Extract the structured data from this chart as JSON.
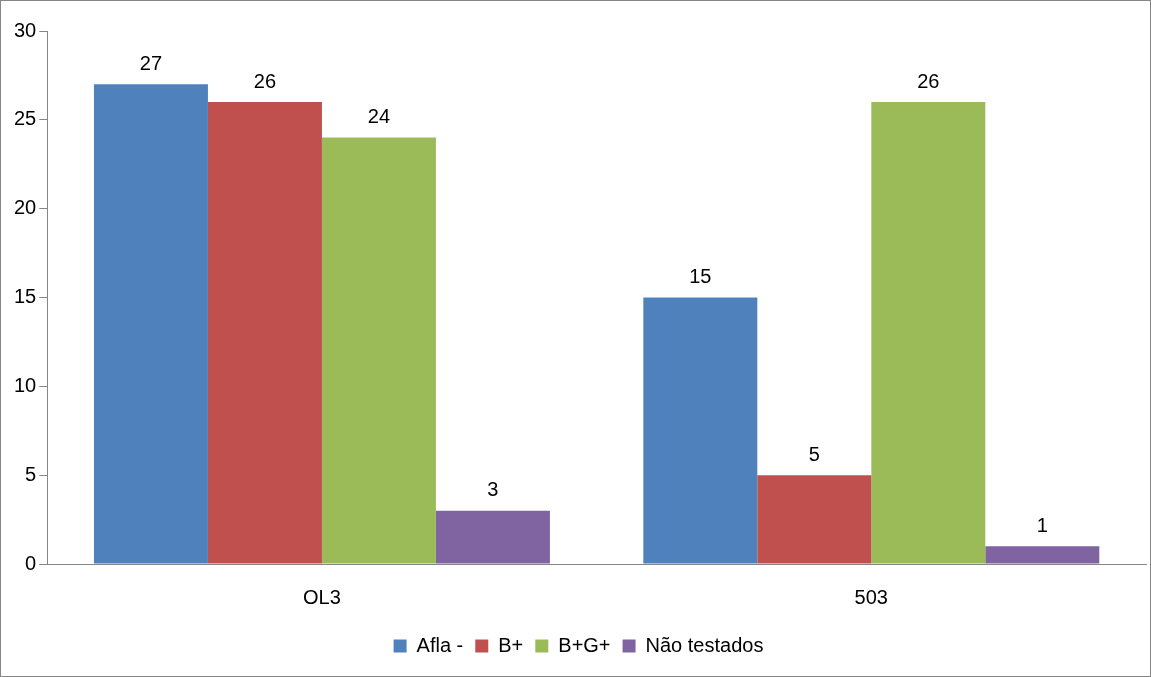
{
  "chart_data": {
    "type": "bar",
    "categories": [
      "OL3",
      "503"
    ],
    "series": [
      {
        "name": "Afla -",
        "color": "#4f81bd",
        "values": [
          27,
          15
        ]
      },
      {
        "name": "B+",
        "color": "#c0504d",
        "values": [
          26,
          5
        ]
      },
      {
        "name": "B+G+",
        "color": "#9bbb59",
        "values": [
          24,
          26
        ]
      },
      {
        "name": "Não testados",
        "color": "#8064a2",
        "values": [
          3,
          1
        ]
      }
    ],
    "ylim": [
      0,
      30
    ],
    "yticks": [
      0,
      5,
      10,
      15,
      20,
      25,
      30
    ],
    "grid": false,
    "legend": "bottom",
    "data_labels": true
  }
}
